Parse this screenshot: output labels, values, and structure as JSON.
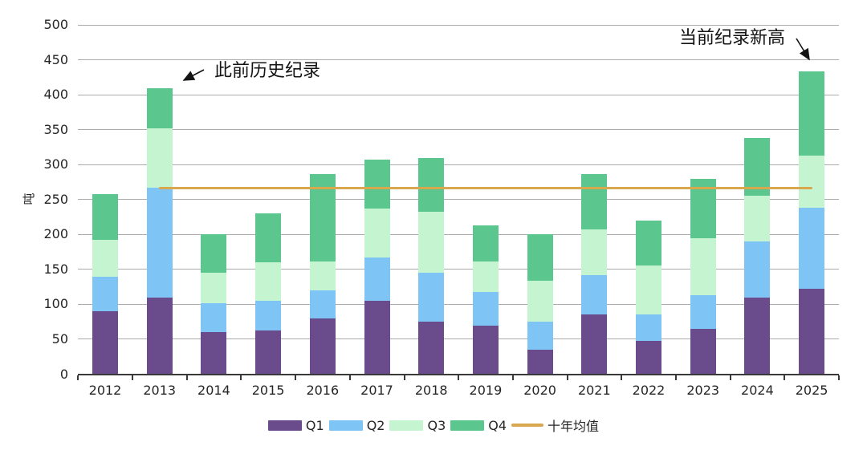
{
  "chart_data": {
    "type": "bar",
    "subtype": "stacked-bars-with-average-line",
    "title": "",
    "xlabel": "",
    "ylabel": "吨",
    "ylim": [
      0,
      500
    ],
    "yticks": [
      0,
      50,
      100,
      150,
      200,
      250,
      300,
      350,
      400,
      450,
      500
    ],
    "grid": "horizontal",
    "legend_position": "bottom",
    "categories": [
      "2012",
      "2013",
      "2014",
      "2015",
      "2016",
      "2017",
      "2018",
      "2019",
      "2020",
      "2021",
      "2022",
      "2023",
      "2024",
      "2025"
    ],
    "series": [
      {
        "name": "Q1",
        "color": "#6A4C8C",
        "values": [
          90,
          110,
          60,
          62,
          80,
          105,
          75,
          70,
          35,
          85,
          48,
          65,
          110,
          122
        ]
      },
      {
        "name": "Q2",
        "color": "#7EC4F5",
        "values": [
          50,
          157,
          42,
          43,
          40,
          62,
          70,
          48,
          40,
          57,
          37,
          48,
          80,
          116
        ]
      },
      {
        "name": "Q3",
        "color": "#C5F4D0",
        "values": [
          52,
          85,
          43,
          55,
          41,
          70,
          88,
          43,
          59,
          65,
          70,
          82,
          65,
          75
        ]
      },
      {
        "name": "Q4",
        "color": "#5BC78E",
        "values": [
          66,
          57,
          55,
          70,
          125,
          70,
          76,
          52,
          66,
          80,
          65,
          85,
          83,
          120
        ]
      }
    ],
    "totals": [
      258,
      409,
      200,
      230,
      286,
      307,
      309,
      213,
      200,
      287,
      220,
      280,
      338,
      433
    ],
    "line_series": {
      "name": "十年均值",
      "value": 266,
      "color": "#D9A74E",
      "span_categories": [
        "2013",
        "2025"
      ]
    },
    "annotations": [
      {
        "text": "此前历史纪录",
        "target_category": "2013"
      },
      {
        "text": "当前纪录新高",
        "target_category": "2025"
      }
    ],
    "colors": {
      "gridline": "#ABABAB",
      "axis": "#3A3A3A",
      "text": "#262626",
      "arrow": "#141414",
      "background": "#FFFFFF"
    }
  }
}
